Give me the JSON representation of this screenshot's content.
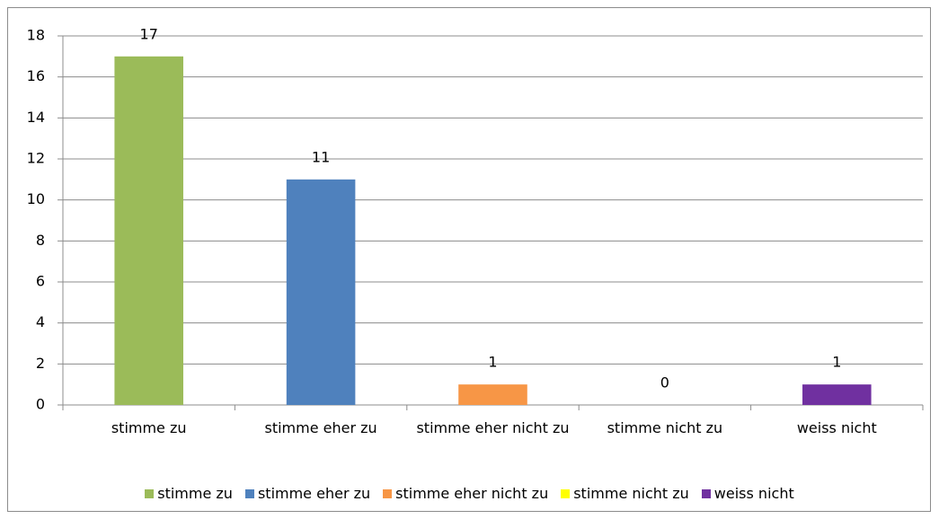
{
  "chart_data": {
    "type": "bar",
    "categories": [
      "stimme zu",
      "stimme eher zu",
      "stimme eher nicht zu",
      "stimme nicht zu",
      "weiss nicht"
    ],
    "values": [
      17,
      11,
      1,
      0,
      1
    ],
    "colors": [
      "#9bbb59",
      "#4f81bd",
      "#f79646",
      "#ffff00",
      "#7030a0"
    ],
    "ylim": [
      0,
      18
    ],
    "yticks": [
      0,
      2,
      4,
      6,
      8,
      10,
      12,
      14,
      16,
      18
    ],
    "grid": true
  }
}
